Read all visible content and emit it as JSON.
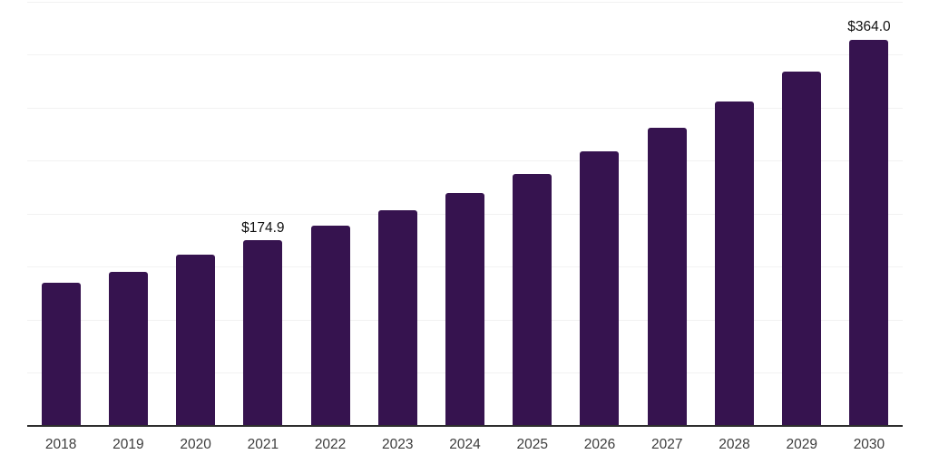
{
  "chart_data": {
    "type": "bar",
    "categories": [
      "2018",
      "2019",
      "2020",
      "2021",
      "2022",
      "2023",
      "2024",
      "2025",
      "2026",
      "2027",
      "2028",
      "2029",
      "2030"
    ],
    "values": [
      134.7,
      145.3,
      161.4,
      174.9,
      188.6,
      203.1,
      219.5,
      237.4,
      258.7,
      280.8,
      305.6,
      333.5,
      364.0
    ],
    "data_labels": [
      "",
      "",
      "",
      "$174.9",
      "",
      "",
      "",
      "",
      "",
      "",
      "",
      "",
      "$364.0"
    ],
    "ylim": [
      0,
      400
    ],
    "grid_step": 50,
    "grid": "horizontal",
    "y_tick_labels_visible": false,
    "legend": "none",
    "colors": {
      "bar": "#36134f",
      "gridline": "#f2f2f2",
      "axis_line": "#2e2e2e",
      "x_tick_label": "#3c3c3c",
      "data_label": "#111111"
    }
  }
}
